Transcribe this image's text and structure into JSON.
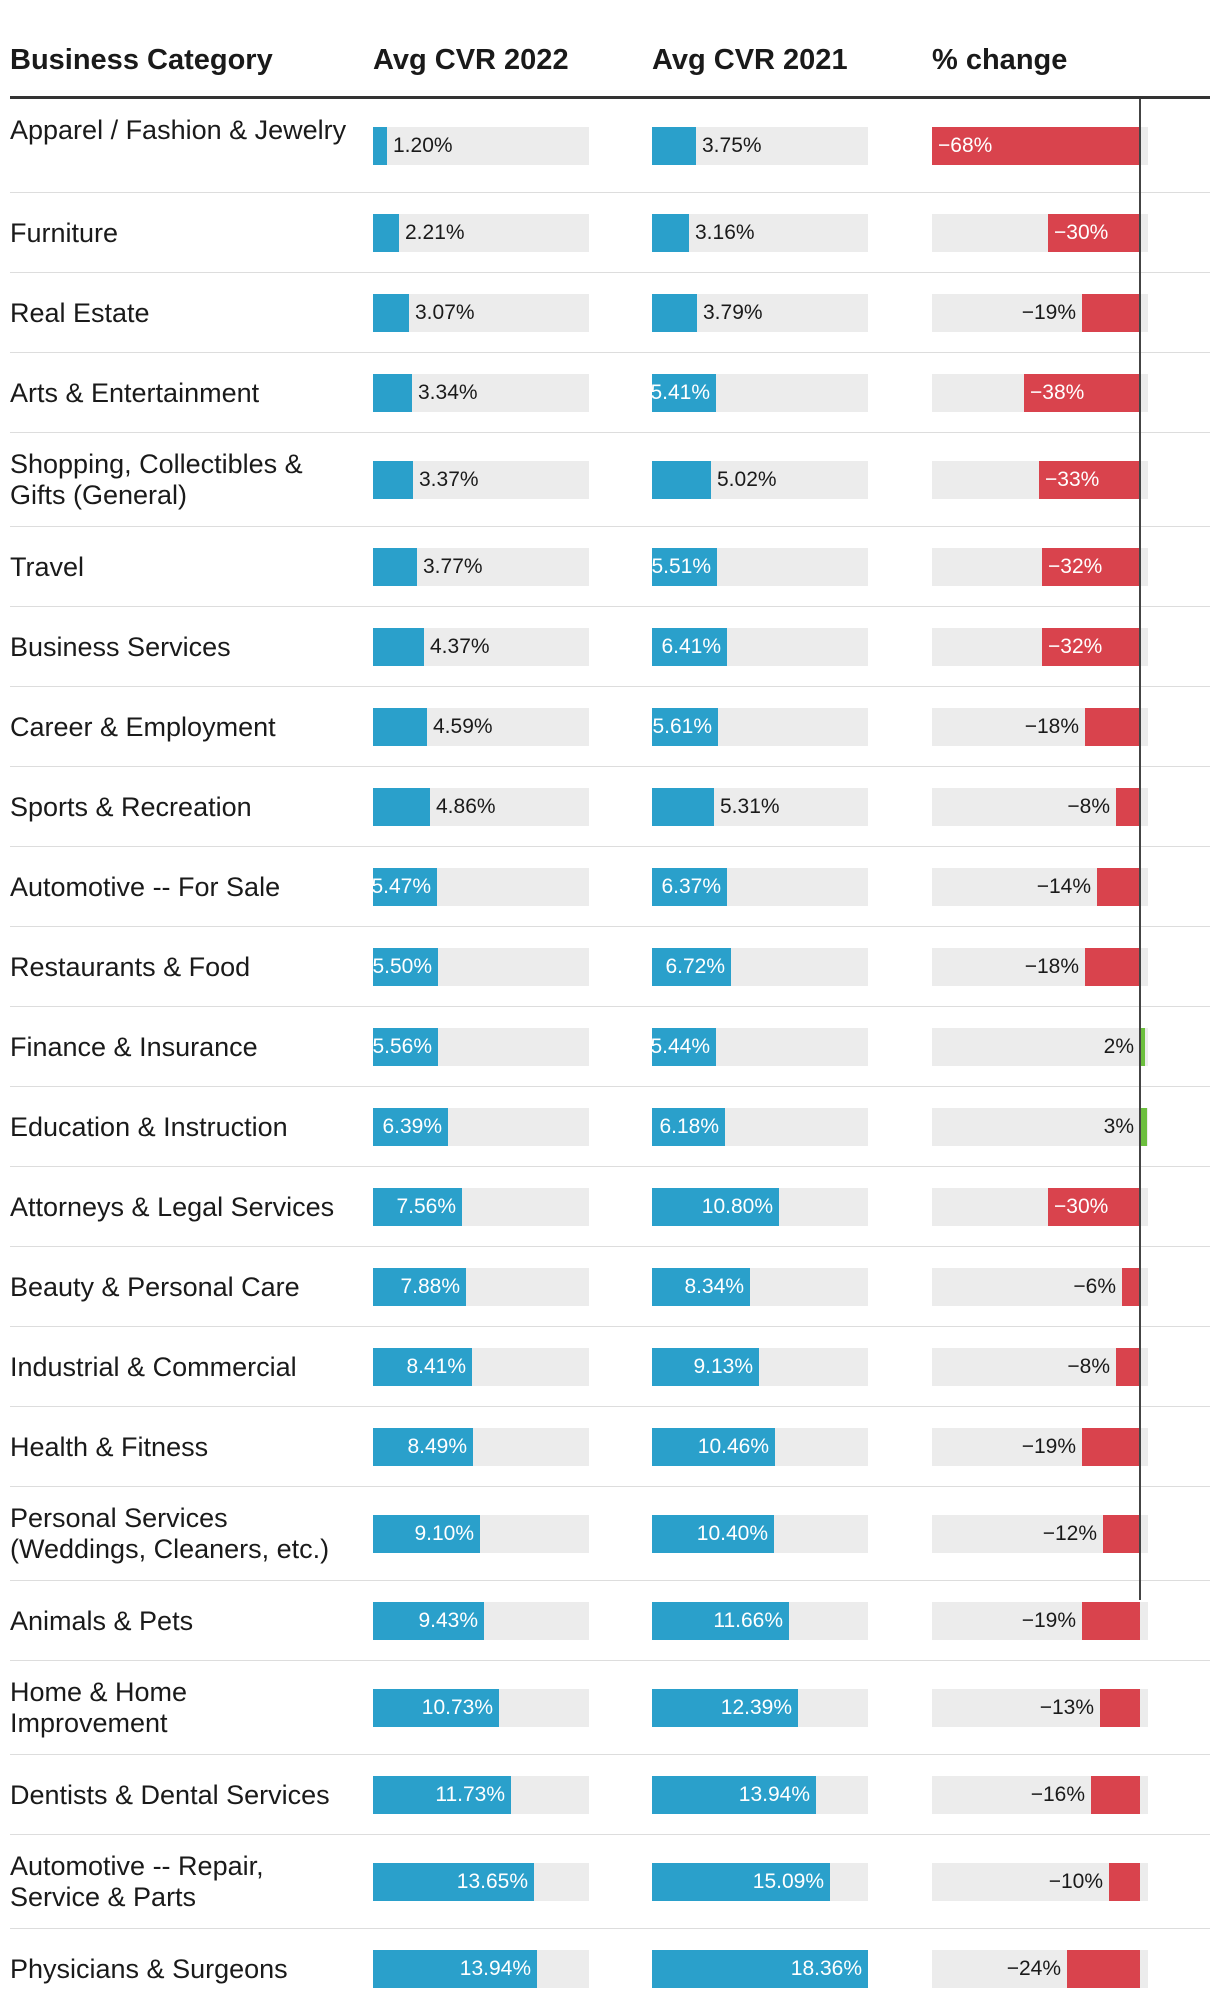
{
  "headers": {
    "category": "Business Category",
    "cvr_2022": "Avg CVR 2022",
    "cvr_2021": "Avg CVR 2021",
    "change": "% change"
  },
  "colors": {
    "cvr_bar": "#2aa0cb",
    "negative": "#d9434d",
    "positive": "#6cbf3e",
    "track": "#ececec"
  },
  "chart_data": {
    "type": "table",
    "title": "",
    "columns": [
      "Business Category",
      "Avg CVR 2022",
      "Avg CVR 2021",
      "% change"
    ],
    "cvr_max": 18.36,
    "change_min": -68,
    "change_max": 3,
    "rows": [
      {
        "category": "Apparel / Fashion & Jewelry",
        "cvr_2022": 1.2,
        "cvr_2022_label": "1.20%",
        "cvr_2021": 3.75,
        "cvr_2021_label": "3.75%",
        "change": -68,
        "change_label": "-68%"
      },
      {
        "category": "Furniture",
        "cvr_2022": 2.21,
        "cvr_2022_label": "2.21%",
        "cvr_2021": 3.16,
        "cvr_2021_label": "3.16%",
        "change": -30,
        "change_label": "-30%"
      },
      {
        "category": "Real Estate",
        "cvr_2022": 3.07,
        "cvr_2022_label": "3.07%",
        "cvr_2021": 3.79,
        "cvr_2021_label": "3.79%",
        "change": -19,
        "change_label": "-19%"
      },
      {
        "category": "Arts & Entertainment",
        "cvr_2022": 3.34,
        "cvr_2022_label": "3.34%",
        "cvr_2021": 5.41,
        "cvr_2021_label": "5.41%",
        "change": -38,
        "change_label": "-38%"
      },
      {
        "category": "Shopping, Collectibles & Gifts (General)",
        "cvr_2022": 3.37,
        "cvr_2022_label": "3.37%",
        "cvr_2021": 5.02,
        "cvr_2021_label": "5.02%",
        "change": -33,
        "change_label": "-33%"
      },
      {
        "category": "Travel",
        "cvr_2022": 3.77,
        "cvr_2022_label": "3.77%",
        "cvr_2021": 5.51,
        "cvr_2021_label": "5.51%",
        "change": -32,
        "change_label": "-32%"
      },
      {
        "category": "Business Services",
        "cvr_2022": 4.37,
        "cvr_2022_label": "4.37%",
        "cvr_2021": 6.41,
        "cvr_2021_label": "6.41%",
        "change": -32,
        "change_label": "-32%"
      },
      {
        "category": "Career & Employment",
        "cvr_2022": 4.59,
        "cvr_2022_label": "4.59%",
        "cvr_2021": 5.61,
        "cvr_2021_label": "5.61%",
        "change": -18,
        "change_label": "-18%"
      },
      {
        "category": "Sports & Recreation",
        "cvr_2022": 4.86,
        "cvr_2022_label": "4.86%",
        "cvr_2021": 5.31,
        "cvr_2021_label": "5.31%",
        "change": -8,
        "change_label": "-8%"
      },
      {
        "category": "Automotive -- For Sale",
        "cvr_2022": 5.47,
        "cvr_2022_label": "5.47%",
        "cvr_2021": 6.37,
        "cvr_2021_label": "6.37%",
        "change": -14,
        "change_label": "-14%"
      },
      {
        "category": "Restaurants & Food",
        "cvr_2022": 5.5,
        "cvr_2022_label": "5.50%",
        "cvr_2021": 6.72,
        "cvr_2021_label": "6.72%",
        "change": -18,
        "change_label": "-18%"
      },
      {
        "category": "Finance & Insurance",
        "cvr_2022": 5.56,
        "cvr_2022_label": "5.56%",
        "cvr_2021": 5.44,
        "cvr_2021_label": "5.44%",
        "change": 2,
        "change_label": "2%"
      },
      {
        "category": "Education & Instruction",
        "cvr_2022": 6.39,
        "cvr_2022_label": "6.39%",
        "cvr_2021": 6.18,
        "cvr_2021_label": "6.18%",
        "change": 3,
        "change_label": "3%"
      },
      {
        "category": "Attorneys & Legal Services",
        "cvr_2022": 7.56,
        "cvr_2022_label": "7.56%",
        "cvr_2021": 10.8,
        "cvr_2021_label": "10.80%",
        "change": -30,
        "change_label": "-30%"
      },
      {
        "category": "Beauty & Personal Care",
        "cvr_2022": 7.88,
        "cvr_2022_label": "7.88%",
        "cvr_2021": 8.34,
        "cvr_2021_label": "8.34%",
        "change": -6,
        "change_label": "-6%"
      },
      {
        "category": "Industrial & Commercial",
        "cvr_2022": 8.41,
        "cvr_2022_label": "8.41%",
        "cvr_2021": 9.13,
        "cvr_2021_label": "9.13%",
        "change": -8,
        "change_label": "-8%"
      },
      {
        "category": "Health & Fitness",
        "cvr_2022": 8.49,
        "cvr_2022_label": "8.49%",
        "cvr_2021": 10.46,
        "cvr_2021_label": "10.46%",
        "change": -19,
        "change_label": "-19%"
      },
      {
        "category": "Personal Services (Weddings, Cleaners, etc.)",
        "cvr_2022": 9.1,
        "cvr_2022_label": "9.10%",
        "cvr_2021": 10.4,
        "cvr_2021_label": "10.40%",
        "change": -12,
        "change_label": "-12%"
      },
      {
        "category": "Animals & Pets",
        "cvr_2022": 9.43,
        "cvr_2022_label": "9.43%",
        "cvr_2021": 11.66,
        "cvr_2021_label": "11.66%",
        "change": -19,
        "change_label": "-19%"
      },
      {
        "category": "Home & Home Improvement",
        "cvr_2022": 10.73,
        "cvr_2022_label": "10.73%",
        "cvr_2021": 12.39,
        "cvr_2021_label": "12.39%",
        "change": -13,
        "change_label": "-13%"
      },
      {
        "category": "Dentists & Dental Services",
        "cvr_2022": 11.73,
        "cvr_2022_label": "11.73%",
        "cvr_2021": 13.94,
        "cvr_2021_label": "13.94%",
        "change": -16,
        "change_label": "-16%"
      },
      {
        "category": "Automotive -- Repair, Service & Parts",
        "cvr_2022": 13.65,
        "cvr_2022_label": "13.65%",
        "cvr_2021": 15.09,
        "cvr_2021_label": "15.09%",
        "change": -10,
        "change_label": "-10%"
      },
      {
        "category": "Physicians & Surgeons",
        "cvr_2022": 13.94,
        "cvr_2022_label": "13.94%",
        "cvr_2021": 18.36,
        "cvr_2021_label": "18.36%",
        "change": -24,
        "change_label": "-24%"
      }
    ]
  }
}
